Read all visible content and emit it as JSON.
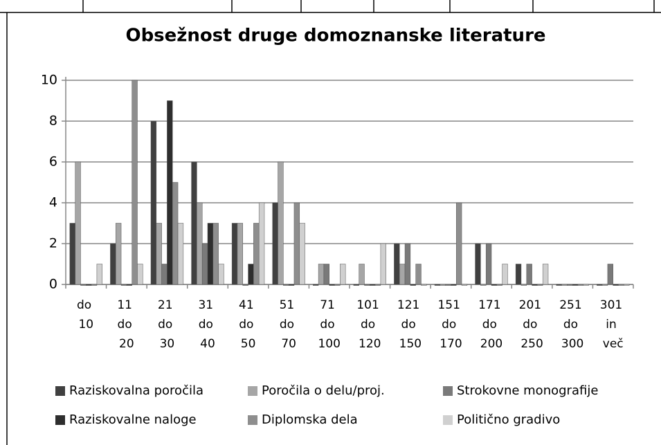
{
  "chart_data": {
    "type": "bar",
    "title": "Obsežnost druge domoznanske literature",
    "categories": [
      "do 10",
      "11 do 20",
      "21 do 30",
      "31 do 40",
      "41 do 50",
      "51 do 70",
      "71 do 100",
      "101 do 120",
      "121 do 150",
      "151 do 170",
      "171 do 200",
      "201 do 250",
      "251 do 300",
      "301 in več"
    ],
    "series": [
      {
        "name": "Raziskovalna poročila",
        "color": "#404040",
        "values": [
          3,
          2,
          8,
          6,
          3,
          4,
          0,
          0,
          2,
          0,
          2,
          1,
          0,
          0
        ]
      },
      {
        "name": "Poročila o delu/proj.",
        "color": "#a6a6a6",
        "values": [
          6,
          3,
          3,
          4,
          3,
          6,
          1,
          1,
          1,
          0,
          0,
          0,
          0,
          0
        ]
      },
      {
        "name": "Strokovne monografije",
        "color": "#7a7a7a",
        "values": [
          0,
          0,
          1,
          2,
          0,
          0,
          1,
          0,
          2,
          0,
          2,
          1,
          0,
          1
        ]
      },
      {
        "name": "Raziskovalne naloge",
        "color": "#2e2e2e",
        "values": [
          0,
          0,
          9,
          3,
          1,
          0,
          0,
          0,
          0,
          0,
          0,
          0,
          0,
          0
        ]
      },
      {
        "name": "Diplomska dela",
        "color": "#8e8e8e",
        "values": [
          0,
          10,
          5,
          3,
          3,
          4,
          0,
          0,
          1,
          4,
          0,
          0,
          0,
          0
        ]
      },
      {
        "name": "Politično gradivo",
        "color": "#d0d0d0",
        "values": [
          1,
          1,
          3,
          1,
          4,
          3,
          1,
          2,
          0,
          0,
          1,
          1,
          0,
          0
        ]
      }
    ],
    "ylim": [
      0,
      10
    ],
    "yticks": [
      0,
      2,
      4,
      6,
      8,
      10
    ],
    "grid": true
  }
}
